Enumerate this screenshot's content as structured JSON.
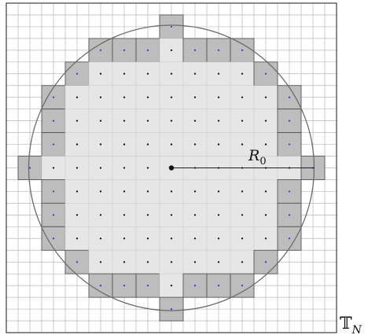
{
  "diagram": {
    "radius_label": "R",
    "radius_subscript": "0",
    "torus_label": "𝕋",
    "torus_subscript": "N",
    "grid_count": 14,
    "disk_radius_cells": 6.05,
    "colors": {
      "grid_line": "#b9b9b9",
      "frame": "#2b2b2b",
      "interior_cell": "#e6e6e6",
      "interior_cell_border": "#cfcfcf",
      "boundary_cell": "#bdbdbd",
      "boundary_cell_border": "#555555",
      "circle": "#6b6b6b",
      "interior_dot": "#111111",
      "boundary_dot": "#2b3bd6",
      "radius_line": "#222222"
    }
  }
}
